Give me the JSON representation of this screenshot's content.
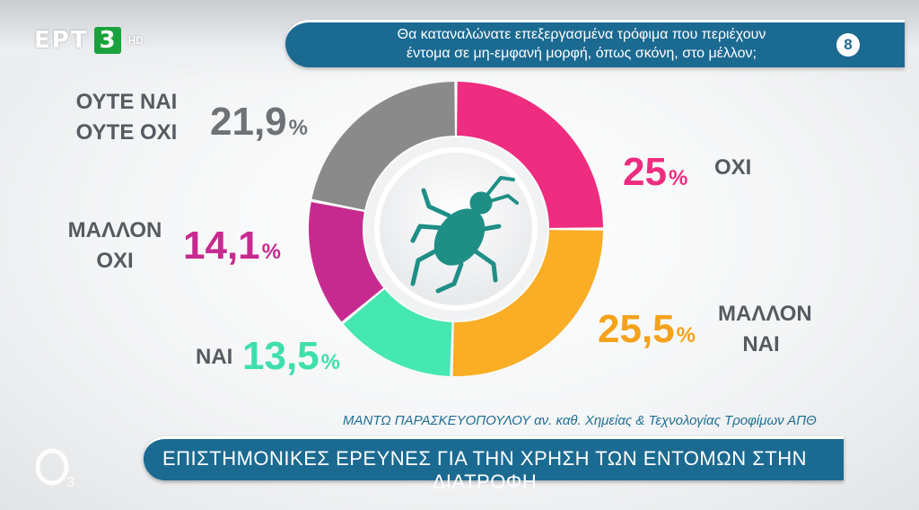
{
  "channel": {
    "name": "ΕΡΤ",
    "number": "3",
    "quality": "HD"
  },
  "question": {
    "text_line1": "Θα καταναλώνατε επεξεργασμένα τρόφιμα που περιέχουν",
    "text_line2": "έντομα σε μη-εμφανή μορφή, όπως σκόνη, στο μέλλον;",
    "number": "8"
  },
  "chart_data": {
    "type": "pie",
    "style": "donut",
    "categories": [
      "ΟΧΙ",
      "ΜΑΛΛΟΝ ΝΑΙ",
      "ΝΑΙ",
      "ΜΑΛΛΟΝ ΟΧΙ",
      "ΟΥΤΕ ΝΑΙ ΟΥΤΕ ΟΧΙ"
    ],
    "values": [
      25,
      25.5,
      13.5,
      14.1,
      21.9
    ],
    "display_values": [
      "25",
      "25,5",
      "13,5",
      "14,1",
      "21,9"
    ],
    "unit": "%",
    "colors": [
      "#ee2c80",
      "#f9ae25",
      "#45e8b0",
      "#c72a8f",
      "#8a8a8a"
    ],
    "labels": {
      "no": "ΟΧΙ",
      "rather_yes_line1": "ΜΑΛΛΟΝ",
      "rather_yes_line2": "ΝΑΙ",
      "yes": "ΝΑΙ",
      "rather_no_line1": "ΜΑΛΛΟΝ",
      "rather_no_line2": "ΟΧΙ",
      "neither_line1": "ΟΥΤΕ ΝΑΙ",
      "neither_line2": "ΟΥΤΕ ΟΧΙ"
    },
    "center_icon": "insect-icon"
  },
  "source": "ΜΑΝΤΩ ΠΑΡΑΣΚΕΥΟΠΟΥΛΟΥ αν. καθ. Χημείας & Τεχνολογίας Τροφίμων ΑΠΘ",
  "bottom_title": "ΕΠΙΣΤΗΜΟΝΙΚΕΣ ΕΡΕΥΝΕΣ ΓΙΑ ΤΗΝ ΧΡΗΣΗ ΤΩΝ ΕΝΤΟΜΩΝ ΣΤΗΝ ΔΙΑΤΡΟΦΗ",
  "colors": {
    "banner": "#1b6a91",
    "text_gray": "#555b60",
    "icon_teal": "#1f8f86"
  }
}
